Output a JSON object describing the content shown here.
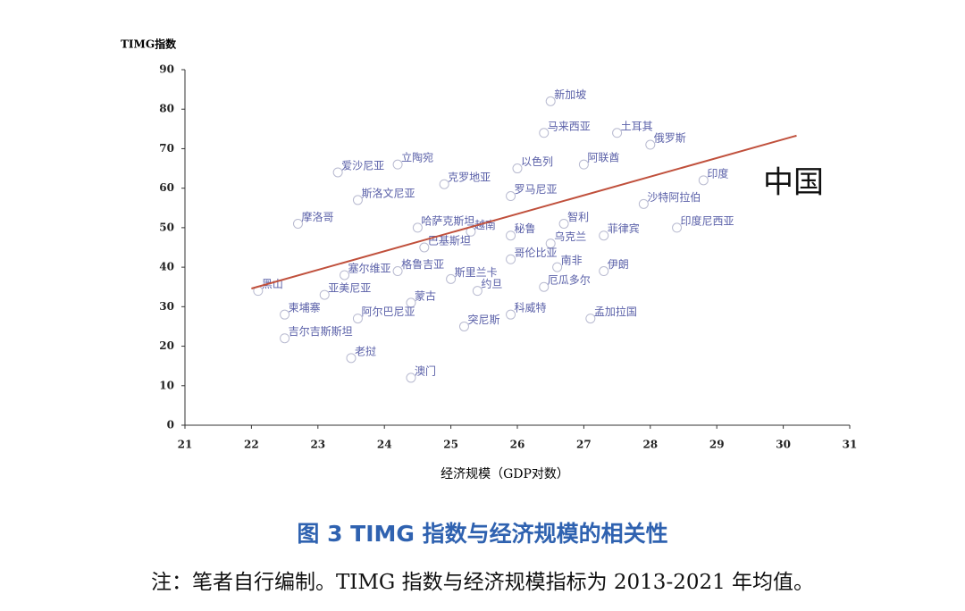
{
  "chart_data": {
    "type": "scatter",
    "y_label": "TIMG指数",
    "x_label": "经济规模（GDP对数）",
    "xlim": [
      21,
      31
    ],
    "xticks": [
      21,
      22,
      23,
      24,
      25,
      26,
      27,
      28,
      29,
      30,
      31
    ],
    "ylim": [
      0,
      90
    ],
    "yticks": [
      0,
      10,
      20,
      30,
      40,
      50,
      60,
      70,
      80,
      90
    ],
    "point_color": "#b8bad0",
    "label_color": "#5a60a8",
    "labels": [
      "新加坡",
      "马来西亚",
      "土耳其",
      "俄罗斯",
      "印度",
      "以色列",
      "阿联酋",
      "克罗地亚",
      "爱沙尼亚",
      "立陶宛",
      "斯洛文尼亚",
      "罗马尼亚",
      "沙特阿拉伯",
      "摩洛哥",
      "哈萨克斯坦",
      "越南",
      "秘鲁",
      "智利",
      "印度尼西亚",
      "菲律宾",
      "巴基斯坦",
      "乌克兰",
      "哥伦比亚",
      "南非",
      "伊朗",
      "塞尔维亚",
      "格鲁吉亚",
      "斯里兰卡",
      "厄瓜多尔",
      "约旦",
      "黑山",
      "亚美尼亚",
      "蒙古",
      "柬埔寨",
      "阿尔巴尼亚",
      "科威特",
      "孟加拉国",
      "突尼斯",
      "吉尔吉斯斯坦",
      "老挝",
      "澳门"
    ],
    "x": [
      26.5,
      26.4,
      27.5,
      28.0,
      28.8,
      26.0,
      27.0,
      24.9,
      23.3,
      24.2,
      23.6,
      25.9,
      27.9,
      22.7,
      24.5,
      25.3,
      25.9,
      26.7,
      28.4,
      27.3,
      24.6,
      26.5,
      25.9,
      26.6,
      27.3,
      23.4,
      24.2,
      25.0,
      26.4,
      25.4,
      22.1,
      23.1,
      24.4,
      22.5,
      23.6,
      25.9,
      27.1,
      25.2,
      22.5,
      23.5,
      24.4
    ],
    "y": [
      82,
      74,
      74,
      71,
      62,
      65,
      66,
      61,
      64,
      66,
      57,
      58,
      56,
      51,
      50,
      49,
      48,
      51,
      50,
      48,
      45,
      46,
      42,
      40,
      39,
      38,
      39,
      37,
      35,
      34,
      34,
      33,
      31,
      28,
      27,
      28,
      27,
      25,
      22,
      17,
      12
    ],
    "trend_line": {
      "x": [
        22.0,
        30.2
      ],
      "y": [
        34.6,
        73.3
      ],
      "color": "#c0503c"
    },
    "annotation": "中国",
    "caption": "图 3  TIMG 指数与经济规模的相关性",
    "note": "注：笔者自行编制。TIMG 指数与经济规模指标为 2013-2021 年均值。"
  }
}
